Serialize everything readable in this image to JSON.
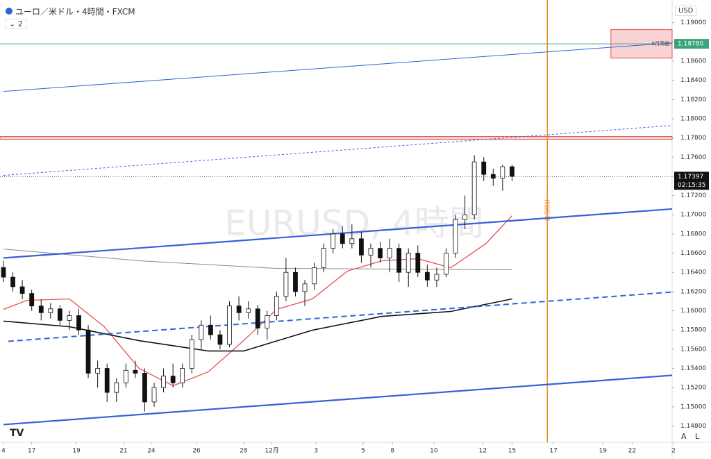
{
  "chart_data": {
    "type": "candlestick",
    "title": "ユーロ／米ドル・4時間・FXCM",
    "indicator_count": "2",
    "currency": "USD",
    "watermark": "EURUSD, 4時間",
    "xlim": [
      0,
      142
    ],
    "ylim": [
      1.1463,
      1.192
    ],
    "xticks": [
      {
        "value": 0,
        "label": "4"
      },
      {
        "value": 6,
        "label": "17"
      },
      {
        "value": 15.5,
        "label": "19"
      },
      {
        "value": 25.5,
        "label": "21"
      },
      {
        "value": 31.4,
        "label": "24"
      },
      {
        "value": 41,
        "label": "26"
      },
      {
        "value": 51,
        "label": "28"
      },
      {
        "value": 57,
        "label": "12月"
      },
      {
        "value": 66.4,
        "label": "3"
      },
      {
        "value": 76.4,
        "label": "5"
      },
      {
        "value": 82.6,
        "label": "8"
      },
      {
        "value": 91.4,
        "label": "10"
      },
      {
        "value": 101.8,
        "label": "12"
      },
      {
        "value": 108,
        "label": "15"
      },
      {
        "value": 116.8,
        "label": "17"
      },
      {
        "value": 127.3,
        "label": "19"
      },
      {
        "value": 133.5,
        "label": "22"
      },
      {
        "value": 142.3,
        "label": "2"
      }
    ],
    "yticks": [
      {
        "value": 1.148,
        "label": "1.14800"
      },
      {
        "value": 1.15,
        "label": "1.15000"
      },
      {
        "value": 1.152,
        "label": "1.15200"
      },
      {
        "value": 1.154,
        "label": "1.15400"
      },
      {
        "value": 1.156,
        "label": "1.15600"
      },
      {
        "value": 1.158,
        "label": "1.15800"
      },
      {
        "value": 1.16,
        "label": "1.16000"
      },
      {
        "value": 1.162,
        "label": "1.16200"
      },
      {
        "value": 1.164,
        "label": "1.16400"
      },
      {
        "value": 1.166,
        "label": "1.16600"
      },
      {
        "value": 1.168,
        "label": "1.16800"
      },
      {
        "value": 1.17,
        "label": "1.17000"
      },
      {
        "value": 1.172,
        "label": "1.17200"
      },
      {
        "value": 1.174,
        "label": "1.17400"
      },
      {
        "value": 1.176,
        "label": "1.17600"
      },
      {
        "value": 1.178,
        "label": "1.17800"
      },
      {
        "value": 1.18,
        "label": "1.18000"
      },
      {
        "value": 1.182,
        "label": "1.18200"
      },
      {
        "value": 1.184,
        "label": "1.18400"
      },
      {
        "value": 1.186,
        "label": "1.18600"
      },
      {
        "value": 1.188,
        "label": "1.18800"
      },
      {
        "value": 1.19,
        "label": "1.19000"
      }
    ],
    "x": [
      0,
      2,
      4,
      6,
      8,
      10,
      12,
      14,
      16,
      18,
      20,
      22,
      24,
      26,
      28,
      30,
      32,
      34,
      36,
      38,
      40,
      42,
      44,
      46,
      48,
      50,
      52,
      54,
      56,
      58,
      60,
      62,
      64,
      66,
      68,
      70,
      72,
      74,
      76,
      78,
      80,
      82,
      84,
      86,
      88,
      90,
      92,
      94,
      96,
      98,
      100,
      102,
      104,
      106,
      108
    ],
    "open": [
      1.1645,
      1.1635,
      1.1625,
      1.1618,
      1.1605,
      1.1598,
      1.1602,
      1.159,
      1.1595,
      1.158,
      1.1535,
      1.154,
      1.1515,
      1.1525,
      1.1538,
      1.1535,
      1.1505,
      1.152,
      1.1532,
      1.1525,
      1.154,
      1.157,
      1.1585,
      1.1575,
      1.1565,
      1.1605,
      1.1598,
      1.1602,
      1.1582,
      1.1595,
      1.1615,
      1.164,
      1.162,
      1.1628,
      1.1645,
      1.1665,
      1.168,
      1.167,
      1.1675,
      1.1658,
      1.1665,
      1.1655,
      1.1665,
      1.164,
      1.166,
      1.164,
      1.1632,
      1.1638,
      1.166,
      1.1695,
      1.17,
      1.1755,
      1.1742,
      1.1738,
      1.175
    ],
    "high": [
      1.1652,
      1.164,
      1.1632,
      1.1622,
      1.1612,
      1.1608,
      1.1606,
      1.16,
      1.1602,
      1.1585,
      1.1548,
      1.1545,
      1.153,
      1.1545,
      1.1548,
      1.154,
      1.1525,
      1.154,
      1.1545,
      1.1545,
      1.1575,
      1.159,
      1.1595,
      1.158,
      1.161,
      1.1615,
      1.161,
      1.1606,
      1.16,
      1.162,
      1.1655,
      1.1645,
      1.1632,
      1.165,
      1.167,
      1.1685,
      1.1688,
      1.169,
      1.1682,
      1.167,
      1.1672,
      1.1675,
      1.167,
      1.1665,
      1.1668,
      1.1648,
      1.1645,
      1.1665,
      1.17,
      1.172,
      1.1762,
      1.176,
      1.1748,
      1.1752,
      1.1752
    ],
    "low": [
      1.163,
      1.162,
      1.1612,
      1.16,
      1.159,
      1.1592,
      1.1585,
      1.158,
      1.1575,
      1.153,
      1.152,
      1.1505,
      1.1505,
      1.152,
      1.153,
      1.1495,
      1.15,
      1.1515,
      1.152,
      1.152,
      1.1535,
      1.156,
      1.157,
      1.156,
      1.1562,
      1.159,
      1.1592,
      1.1575,
      1.157,
      1.159,
      1.161,
      1.1615,
      1.1605,
      1.1622,
      1.164,
      1.166,
      1.1665,
      1.1665,
      1.165,
      1.1645,
      1.165,
      1.164,
      1.163,
      1.1625,
      1.1635,
      1.1625,
      1.1625,
      1.1635,
      1.1655,
      1.1685,
      1.1695,
      1.1735,
      1.173,
      1.1725,
      1.1735
    ],
    "close": [
      1.1635,
      1.1625,
      1.1618,
      1.1605,
      1.1598,
      1.1602,
      1.159,
      1.1595,
      1.158,
      1.1535,
      1.154,
      1.1515,
      1.1525,
      1.1538,
      1.1535,
      1.1505,
      1.152,
      1.1532,
      1.1525,
      1.154,
      1.157,
      1.1585,
      1.1575,
      1.1565,
      1.1605,
      1.1598,
      1.1602,
      1.1582,
      1.1595,
      1.1615,
      1.164,
      1.162,
      1.1628,
      1.1645,
      1.1665,
      1.168,
      1.167,
      1.1675,
      1.1658,
      1.1665,
      1.1655,
      1.1665,
      1.164,
      1.166,
      1.164,
      1.1632,
      1.1638,
      1.166,
      1.1695,
      1.17,
      1.1755,
      1.1742,
      1.1738,
      1.175,
      1.174
    ],
    "up_color": "#ffffff",
    "down_color": "#111111",
    "lines": [
      {
        "color": "#e8504f",
        "width": 1.3,
        "style": "solid",
        "x": [
          0,
          5,
          14,
          21.4,
          28.8,
          36,
          43.5,
          51,
          58,
          65.6,
          73,
          80.4,
          88,
          95,
          102.5,
          108
        ],
        "values": [
          1.16015,
          1.16109,
          1.16123,
          1.15834,
          1.154,
          1.1522,
          1.15364,
          1.15689,
          1.16015,
          1.16123,
          1.16412,
          1.16521,
          1.16542,
          1.16448,
          1.16701,
          1.1699
        ]
      },
      {
        "color": "#111111",
        "width": 1.6,
        "style": "solid",
        "x": [
          0,
          14,
          28.8,
          43.5,
          51,
          65.6,
          80.4,
          95,
          108
        ],
        "values": [
          1.15892,
          1.15834,
          1.15689,
          1.15581,
          1.15581,
          1.15798,
          1.15942,
          1.15993,
          1.16123
        ]
      },
      {
        "color": "#888888",
        "width": 1,
        "style": "solid",
        "x": [
          0,
          28.8,
          58,
          108
        ],
        "values": [
          1.16643,
          1.16521,
          1.16441,
          1.16427
        ]
      },
      {
        "color": "#3461d9",
        "width": 2.2,
        "style": "solid",
        "x": [
          0,
          142
        ],
        "values": [
          1.1655,
          1.1706
        ]
      },
      {
        "color": "#3461d9",
        "width": 2.2,
        "style": "solid",
        "x": [
          0,
          142
        ],
        "values": [
          1.14815,
          1.15328
        ]
      },
      {
        "color": "#3461d9",
        "width": 2,
        "style": "dashed",
        "x": [
          1,
          142
        ],
        "values": [
          1.15682,
          1.16195
        ]
      },
      {
        "color": "#3461d9",
        "width": 1,
        "style": "solid",
        "x": [
          0,
          142
        ],
        "values": [
          1.18284,
          1.1879
        ]
      },
      {
        "color": "#3461d9",
        "width": 1,
        "style": "dotted",
        "x": [
          0,
          142
        ],
        "values": [
          1.1741,
          1.1793
        ]
      }
    ],
    "hline": {
      "value": 1.1878,
      "label": "1.18780",
      "color": "#3aa57a"
    },
    "band": {
      "values": [
        1.17785,
        1.17815
      ],
      "color": "#e8504f"
    },
    "box": {
      "x": [
        129,
        142
      ],
      "values": [
        1.18631,
        1.18928
      ],
      "color": "#e8504f",
      "label": "9月高値"
    },
    "event": {
      "x": 115.5,
      "label": "雇用統計",
      "color": "#f08a24"
    },
    "last_price": 1.17397,
    "countdown": "02:15:35",
    "buttons": [
      "A",
      "L"
    ]
  }
}
